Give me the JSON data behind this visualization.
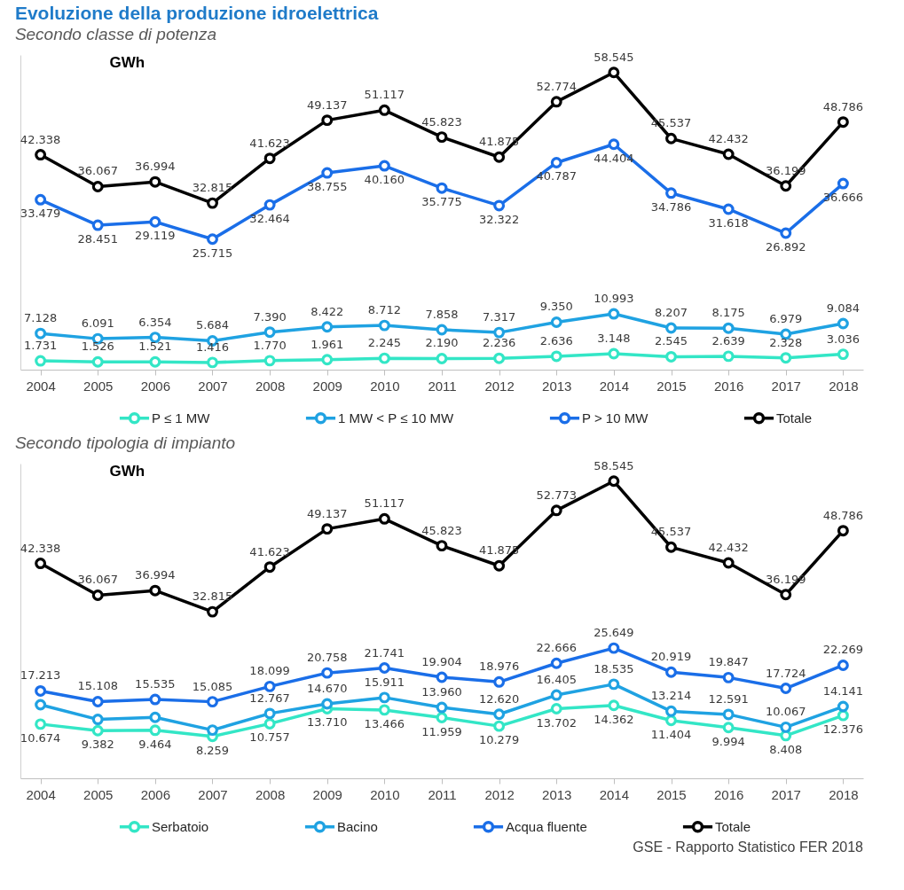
{
  "chart_data": [
    {
      "type": "line",
      "title": "Evoluzione della produzione idroelettrica",
      "subtitle": "Secondo classe di potenza",
      "ylabel": "GWh",
      "categories": [
        "2004",
        "2005",
        "2006",
        "2007",
        "2008",
        "2009",
        "2010",
        "2011",
        "2012",
        "2013",
        "2014",
        "2015",
        "2016",
        "2017",
        "2018"
      ],
      "ylim": [
        0,
        62000
      ],
      "marker": "circle",
      "line_style": "solid",
      "legend": "bottom",
      "tick_labels": "x",
      "series": [
        {
          "name": "P ≤ 1 MW",
          "color": "#33e6c6",
          "values": [
            1731,
            1526,
            1521,
            1416,
            1770,
            1961,
            2245,
            2190,
            2236,
            2636,
            3148,
            2545,
            2639,
            2328,
            3036
          ],
          "value_labels": [
            "1.731",
            "1.526",
            "1.521",
            "1.416",
            "1.770",
            "1.961",
            "2.245",
            "2.190",
            "2.236",
            "2.636",
            "3.148",
            "2.545",
            "2.639",
            "2.328",
            "3.036"
          ]
        },
        {
          "name": "1 MW < P ≤ 10 MW",
          "color": "#1fa2e2",
          "values": [
            7128,
            6091,
            6354,
            5684,
            7390,
            8422,
            8712,
            7858,
            7317,
            9350,
            10993,
            8207,
            8175,
            6979,
            9084
          ],
          "value_labels": [
            "7.128",
            "6.091",
            "6.354",
            "5.684",
            "7.390",
            "8.422",
            "8.712",
            "7.858",
            "7.317",
            "9.350",
            "10.993",
            "8.207",
            "8.175",
            "6.979",
            "9.084"
          ]
        },
        {
          "name": "P > 10 MW",
          "color": "#1a6ee8",
          "values": [
            33479,
            28451,
            29119,
            25715,
            32464,
            38755,
            40160,
            35775,
            32322,
            40787,
            44404,
            34786,
            31618,
            26892,
            36666
          ],
          "value_labels": [
            "33.479",
            "28.451",
            "29.119",
            "25.715",
            "32.464",
            "38.755",
            "40.160",
            "35.775",
            "32.322",
            "40.787",
            "44.404",
            "34.786",
            "31.618",
            "26.892",
            "36.666"
          ]
        },
        {
          "name": "Totale",
          "color": "#000000",
          "values": [
            42338,
            36067,
            36994,
            32815,
            41623,
            49137,
            51117,
            45823,
            41875,
            52774,
            58545,
            45537,
            42432,
            36199,
            48786
          ],
          "value_labels": [
            "42.338",
            "36.067",
            "36.994",
            "32.815",
            "41.623",
            "49.137",
            "51.117",
            "45.823",
            "41.875",
            "52.774",
            "58.545",
            "45.537",
            "42.432",
            "36.199",
            "48.786"
          ]
        }
      ]
    },
    {
      "type": "line",
      "subtitle": "Secondo tipologia di impianto",
      "ylabel": "GWh",
      "categories": [
        "2004",
        "2005",
        "2006",
        "2007",
        "2008",
        "2009",
        "2010",
        "2011",
        "2012",
        "2013",
        "2014",
        "2015",
        "2016",
        "2017",
        "2018"
      ],
      "ylim": [
        0,
        62000
      ],
      "marker": "circle",
      "line_style": "solid",
      "legend": "bottom",
      "tick_labels": "x",
      "annotations": [
        "GSE - Rapporto Statistico FER 2018"
      ],
      "series": [
        {
          "name": "Serbatoio",
          "color": "#33e6c6",
          "values": [
            10674,
            9382,
            9464,
            8259,
            10757,
            13710,
            13466,
            11959,
            10279,
            13702,
            14362,
            11404,
            9994,
            8408,
            12376
          ],
          "value_labels": [
            "10.674",
            "9.382",
            "9.464",
            "8.259",
            "10.757",
            "13.710",
            "13.466",
            "11.959",
            "10.279",
            "13.702",
            "14.362",
            "11.404",
            "9.994",
            "8.408",
            "12.376"
          ]
        },
        {
          "name": "Bacino",
          "color": "#1fa2e2",
          "values": [
            14500,
            11600,
            12000,
            9500,
            12767,
            14670,
            15911,
            13960,
            12620,
            16405,
            18535,
            13214,
            12591,
            10067,
            14141
          ],
          "value_labels": [
            null,
            null,
            null,
            null,
            "12.767",
            "14.670",
            "15.911",
            "13.960",
            "12.620",
            "16.405",
            "18.535",
            "13.214",
            "12.591",
            "10.067",
            "14.141"
          ]
        },
        {
          "name": "Acqua fluente",
          "color": "#1a6ee8",
          "values": [
            17213,
            15108,
            15535,
            15085,
            18099,
            20758,
            21741,
            19904,
            18976,
            22666,
            25649,
            20919,
            19847,
            17724,
            22269
          ],
          "value_labels": [
            "17.213",
            "15.108",
            "15.535",
            "15.085",
            "18.099",
            "20.758",
            "21.741",
            "19.904",
            "18.976",
            "22.666",
            "25.649",
            "20.919",
            "19.847",
            "17.724",
            "22.269"
          ]
        },
        {
          "name": "Totale",
          "color": "#000000",
          "values": [
            42338,
            36067,
            36994,
            32815,
            41623,
            49137,
            51117,
            45823,
            41875,
            52773,
            58545,
            45537,
            42432,
            36199,
            48786
          ],
          "value_labels": [
            "42.338",
            "36.067",
            "36.994",
            "32.815",
            "41.623",
            "49.137",
            "51.117",
            "45.823",
            "41.875",
            "52.773",
            "58.545",
            "45.537",
            "42.432",
            "36.199",
            "48.786"
          ]
        }
      ]
    }
  ]
}
